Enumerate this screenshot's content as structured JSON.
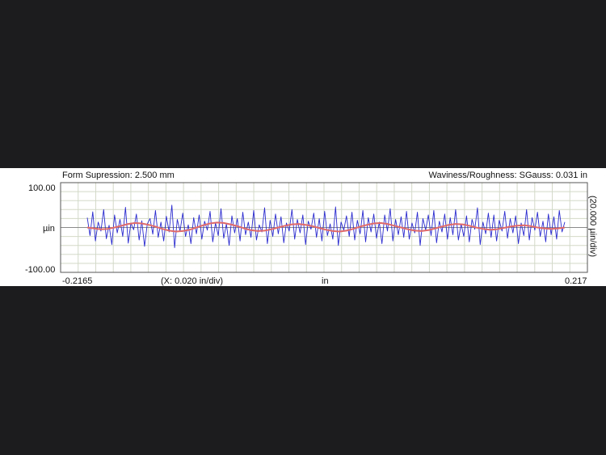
{
  "header": {
    "left_label": "Form Supression: 2.500 mm",
    "right_label": "Waviness/Roughness: SGauss: 0.031 in"
  },
  "axes": {
    "y_top_tick": "100.00",
    "y_unit": "µin",
    "y_bottom_tick": "-100.00",
    "y_scale_note": "(20.000 µin/div)",
    "x_left_tick": "-0.2165",
    "x_scale_note": "(X: 0.020 in/div)",
    "x_unit": "in",
    "x_right_tick": "0.217"
  },
  "colors": {
    "background": "#1c1c1e",
    "panel": "#ffffff",
    "grid": "#d2d9c8",
    "zero_line": "#8a8a8a",
    "roughness": "#2a2acf",
    "waviness": "#e06a6a"
  },
  "chart_data": {
    "type": "line",
    "xlabel": "in",
    "ylabel": "µin",
    "xlim": [
      -0.2165,
      0.217
    ],
    "ylim": [
      -100,
      100
    ],
    "grid": true,
    "series": [
      {
        "values_note": "roughness profile",
        "x_start": -0.2165,
        "x_end": 0.217,
        "y": [
          22,
          -18,
          35,
          -30,
          12,
          -8,
          40,
          -25,
          5,
          -38,
          28,
          -12,
          18,
          -20,
          45,
          -35,
          10,
          -5,
          30,
          -28,
          15,
          -42,
          8,
          20,
          -15,
          38,
          -22,
          12,
          -30,
          25,
          -10,
          50,
          -45,
          18,
          -8,
          32,
          -20,
          6,
          -36,
          22,
          -14,
          28,
          -26,
          14,
          -6,
          36,
          -32,
          10,
          -18,
          42,
          -24,
          8,
          -40,
          26,
          -12,
          20,
          -30,
          34,
          -16,
          12,
          -22,
          38,
          -28,
          6,
          -10,
          44,
          -36,
          16,
          -20,
          30,
          -14,
          24,
          -34,
          10,
          -8,
          40,
          -26,
          18,
          -12,
          28,
          -38,
          14,
          -4,
          32,
          -22,
          20,
          -30,
          36,
          -18,
          8,
          -26,
          46,
          -40,
          12,
          -6,
          26,
          -20,
          34,
          -28,
          16,
          -14,
          38,
          -32,
          22,
          -10,
          30,
          -24,
          12,
          -36,
          28,
          -8,
          42,
          -30,
          18,
          -16,
          24,
          -22,
          36,
          -26,
          10,
          -12,
          34,
          -40,
          20,
          -6,
          28,
          -18,
          38,
          -34,
          14,
          -10,
          30,
          -26,
          22,
          -16,
          40,
          -28,
          8,
          -20,
          26,
          -32,
          18,
          -4,
          44,
          -38,
          12,
          -14,
          32,
          -22,
          28,
          -30,
          16,
          -8,
          36,
          -24,
          20,
          -12,
          26,
          -36,
          10,
          -18,
          40,
          -28,
          22,
          -6,
          34,
          -20,
          14,
          -32,
          30,
          -16,
          24,
          -26,
          38,
          -10,
          12
        ]
      },
      {
        "values_note": "waviness profile",
        "x_start": -0.2165,
        "x_end": 0.217,
        "y": [
          0,
          -2,
          -4,
          -3,
          0,
          4,
          8,
          10,
          9,
          6,
          2,
          -3,
          -7,
          -9,
          -8,
          -5,
          0,
          5,
          9,
          11,
          10,
          7,
          3,
          -2,
          -6,
          -8,
          -7,
          -4,
          0,
          4,
          7,
          8,
          6,
          3,
          -1,
          -5,
          -8,
          -9,
          -7,
          -3,
          2,
          6,
          9,
          10,
          8,
          4,
          0,
          -4,
          -7,
          -8,
          -6,
          -2,
          2,
          6,
          8,
          7,
          4,
          0,
          -3,
          -5,
          -4,
          -1,
          2,
          4,
          5,
          3,
          0,
          -2,
          -3,
          -2,
          0
        ]
      }
    ]
  }
}
